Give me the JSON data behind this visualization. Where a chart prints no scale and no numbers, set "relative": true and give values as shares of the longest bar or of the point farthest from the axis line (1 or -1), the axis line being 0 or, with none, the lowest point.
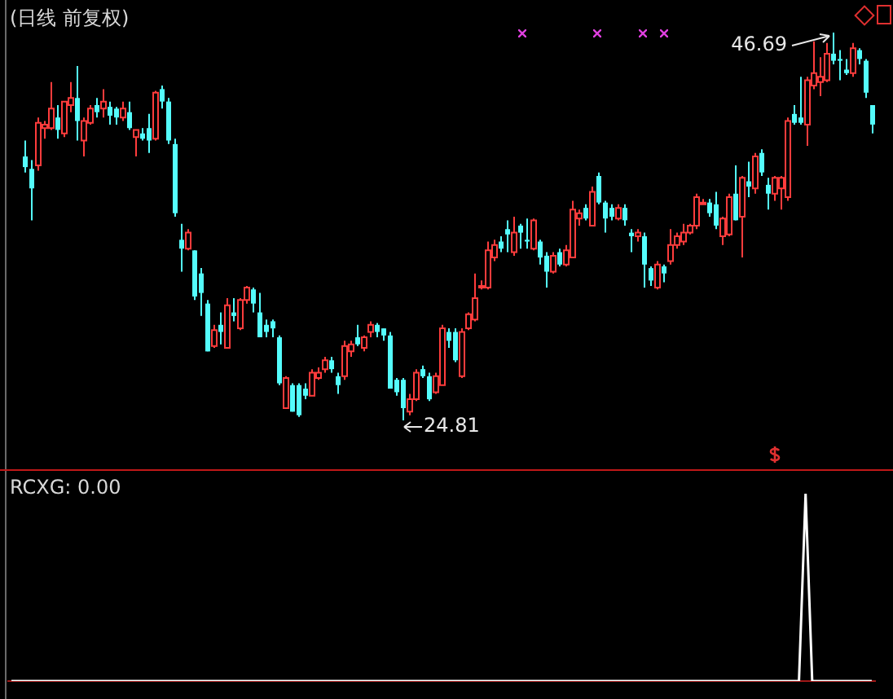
{
  "chart_data": [
    {
      "type": "candlestick",
      "title": "(日线 前复权)",
      "tick_labels": false,
      "categories": [
        null,
        null,
        null,
        null,
        null,
        null,
        null,
        null,
        null,
        null,
        null,
        null,
        null,
        null,
        null,
        null,
        null,
        null,
        null,
        null,
        null,
        null,
        null,
        null,
        null,
        null,
        null,
        null,
        null,
        null,
        null,
        null,
        null,
        null,
        null,
        null,
        null,
        null,
        null,
        null,
        null,
        null,
        null,
        null,
        null,
        null,
        null,
        null,
        null,
        null,
        null,
        null,
        null,
        null,
        null,
        null,
        null,
        null,
        null,
        null,
        null,
        null,
        null,
        null,
        null,
        null,
        null,
        null,
        null,
        null,
        null,
        null,
        null,
        null,
        null,
        null,
        null,
        null,
        null,
        null,
        null,
        null,
        null,
        null,
        null,
        null,
        null,
        null,
        null,
        null,
        null,
        null,
        null,
        null,
        null,
        null,
        null,
        null,
        null,
        null,
        null,
        null,
        null,
        null,
        null,
        null,
        null,
        null,
        null,
        null,
        null,
        null,
        null,
        null,
        null,
        null,
        null,
        null,
        null,
        null,
        null,
        null,
        null,
        null,
        null,
        null,
        null,
        null,
        null,
        null,
        null
      ],
      "ohlc": [
        [
          39.7,
          40.6,
          38.8,
          39.1
        ],
        [
          39.0,
          39.5,
          36.1,
          37.9
        ],
        [
          39.2,
          41.9,
          38.9,
          41.6
        ],
        [
          41.3,
          41.7,
          40.7,
          41.5
        ],
        [
          41.3,
          43.9,
          41.2,
          42.4
        ],
        [
          41.9,
          42.6,
          40.7,
          41.2
        ],
        [
          41.0,
          42.8,
          40.8,
          42.8
        ],
        [
          42.6,
          43.9,
          42.2,
          43.0
        ],
        [
          43.0,
          44.8,
          40.6,
          41.7
        ],
        [
          40.6,
          41.9,
          39.7,
          41.7
        ],
        [
          41.6,
          42.6,
          41.5,
          42.4
        ],
        [
          42.6,
          43.0,
          41.9,
          42.2
        ],
        [
          42.4,
          43.5,
          41.9,
          42.8
        ],
        [
          42.5,
          42.8,
          41.5,
          42.0
        ],
        [
          42.4,
          42.5,
          41.5,
          41.9
        ],
        [
          41.9,
          42.8,
          41.7,
          42.4
        ],
        [
          42.2,
          42.8,
          41.2,
          41.3
        ],
        [
          40.8,
          41.2,
          39.7,
          41.2
        ],
        [
          41.0,
          41.3,
          40.6,
          40.7
        ],
        [
          41.3,
          42.1,
          39.9,
          40.6
        ],
        [
          40.7,
          43.4,
          40.6,
          43.3
        ],
        [
          43.5,
          43.7,
          42.4,
          42.8
        ],
        [
          42.8,
          43.0,
          40.4,
          40.6
        ],
        [
          40.4,
          40.7,
          36.3,
          36.5
        ],
        [
          35.0,
          35.9,
          33.2,
          34.5
        ],
        [
          34.5,
          35.6,
          34.4,
          35.4
        ],
        [
          34.4,
          34.4,
          31.6,
          31.8
        ],
        [
          33.1,
          33.4,
          30.7,
          32.0
        ],
        [
          31.4,
          31.6,
          28.7,
          28.7
        ],
        [
          29.0,
          30.2,
          28.9,
          29.9
        ],
        [
          30.2,
          30.9,
          29.1,
          29.8
        ],
        [
          28.9,
          31.7,
          28.9,
          31.3
        ],
        [
          30.9,
          31.7,
          30.4,
          30.7
        ],
        [
          30.0,
          31.7,
          29.9,
          31.6
        ],
        [
          31.6,
          32.4,
          31.4,
          32.3
        ],
        [
          32.2,
          32.3,
          30.9,
          31.4
        ],
        [
          30.9,
          32.0,
          29.5,
          29.5
        ],
        [
          30.2,
          30.5,
          29.5,
          29.8
        ],
        [
          30.4,
          30.5,
          29.5,
          30.0
        ],
        [
          29.5,
          29.6,
          26.8,
          26.9
        ],
        [
          25.5,
          27.3,
          25.5,
          27.2
        ],
        [
          26.8,
          26.9,
          25.3,
          25.3
        ],
        [
          26.8,
          26.9,
          25.0,
          25.1
        ],
        [
          26.6,
          26.9,
          26.0,
          26.2
        ],
        [
          26.2,
          27.7,
          26.2,
          27.5
        ],
        [
          27.2,
          27.8,
          27.1,
          27.5
        ],
        [
          27.7,
          28.4,
          27.5,
          28.2
        ],
        [
          28.2,
          28.4,
          27.5,
          27.7
        ],
        [
          27.3,
          27.5,
          26.3,
          26.8
        ],
        [
          27.3,
          29.3,
          27.1,
          29.0
        ],
        [
          28.7,
          29.3,
          28.4,
          29.1
        ],
        [
          29.5,
          30.2,
          29.0,
          29.1
        ],
        [
          28.9,
          29.6,
          28.7,
          29.5
        ],
        [
          29.8,
          30.4,
          29.5,
          30.2
        ],
        [
          30.2,
          30.3,
          29.5,
          29.8
        ],
        [
          30.0,
          30.0,
          29.3,
          29.6
        ],
        [
          29.6,
          29.8,
          26.6,
          26.6
        ],
        [
          27.1,
          27.2,
          26.2,
          26.4
        ],
        [
          27.1,
          27.2,
          24.81,
          25.5
        ],
        [
          25.3,
          26.3,
          25.1,
          26.0
        ],
        [
          26.0,
          27.7,
          25.9,
          27.5
        ],
        [
          27.7,
          27.9,
          27.2,
          27.3
        ],
        [
          27.3,
          27.5,
          25.9,
          26.0
        ],
        [
          26.4,
          27.5,
          26.3,
          27.3
        ],
        [
          26.8,
          30.2,
          26.8,
          30.0
        ],
        [
          29.8,
          30.0,
          28.9,
          29.3
        ],
        [
          29.8,
          30.0,
          28.1,
          28.2
        ],
        [
          27.3,
          30.0,
          27.2,
          29.8
        ],
        [
          30.0,
          30.9,
          29.9,
          30.8
        ],
        [
          30.5,
          33.1,
          30.4,
          31.7
        ],
        [
          32.3,
          32.7,
          32.2,
          32.4
        ],
        [
          32.3,
          34.9,
          32.2,
          34.4
        ],
        [
          34.0,
          35.0,
          33.8,
          34.7
        ],
        [
          34.9,
          35.2,
          34.3,
          34.5
        ],
        [
          35.6,
          36.1,
          34.3,
          35.3
        ],
        [
          34.3,
          36.3,
          34.1,
          35.4
        ],
        [
          35.8,
          35.9,
          34.5,
          35.4
        ],
        [
          35.0,
          36.2,
          34.5,
          34.9
        ],
        [
          34.5,
          36.2,
          34.4,
          36.1
        ],
        [
          34.9,
          35.0,
          33.6,
          34.0
        ],
        [
          34.1,
          34.3,
          32.3,
          33.2
        ],
        [
          33.2,
          34.3,
          33.1,
          34.1
        ],
        [
          34.3,
          34.5,
          33.5,
          33.6
        ],
        [
          33.6,
          34.7,
          33.5,
          34.4
        ],
        [
          34.0,
          37.2,
          34.0,
          36.7
        ],
        [
          36.2,
          36.7,
          35.8,
          36.5
        ],
        [
          36.8,
          37.0,
          36.1,
          36.2
        ],
        [
          35.8,
          38.0,
          35.8,
          37.7
        ],
        [
          38.6,
          38.8,
          37.0,
          37.1
        ],
        [
          37.1,
          37.2,
          35.4,
          36.2
        ],
        [
          36.8,
          37.0,
          36.1,
          36.3
        ],
        [
          36.2,
          37.0,
          36.1,
          36.8
        ],
        [
          36.8,
          37.0,
          35.8,
          36.1
        ],
        [
          35.4,
          35.6,
          34.3,
          35.2
        ],
        [
          35.2,
          35.6,
          34.9,
          35.4
        ],
        [
          35.2,
          35.4,
          32.3,
          33.6
        ],
        [
          33.4,
          33.5,
          32.4,
          32.7
        ],
        [
          32.3,
          33.8,
          32.2,
          33.6
        ],
        [
          33.5,
          33.6,
          32.6,
          33.1
        ],
        [
          33.8,
          35.6,
          33.6,
          34.7
        ],
        [
          34.7,
          35.4,
          34.5,
          35.2
        ],
        [
          34.9,
          35.9,
          34.7,
          35.4
        ],
        [
          35.4,
          35.9,
          35.3,
          35.8
        ],
        [
          35.8,
          37.6,
          35.6,
          37.4
        ],
        [
          37.0,
          37.3,
          37.0,
          37.1
        ],
        [
          37.1,
          37.3,
          36.3,
          36.5
        ],
        [
          37.0,
          37.7,
          35.6,
          35.8
        ],
        [
          35.2,
          36.3,
          34.7,
          36.2
        ],
        [
          35.3,
          37.6,
          35.2,
          37.4
        ],
        [
          37.6,
          39.2,
          36.1,
          36.1
        ],
        [
          36.3,
          38.6,
          34.0,
          38.5
        ],
        [
          38.3,
          39.4,
          37.4,
          38.0
        ],
        [
          37.9,
          39.9,
          37.6,
          39.7
        ],
        [
          39.9,
          40.1,
          38.6,
          38.8
        ],
        [
          38.1,
          38.5,
          36.7,
          37.6
        ],
        [
          37.6,
          38.6,
          37.2,
          38.5
        ],
        [
          37.9,
          38.6,
          36.7,
          38.5
        ],
        [
          37.4,
          41.9,
          37.2,
          41.7
        ],
        [
          42.1,
          42.6,
          41.5,
          41.6
        ],
        [
          41.9,
          44.2,
          41.5,
          41.6
        ],
        [
          41.5,
          44.2,
          40.3,
          44.0
        ],
        [
          43.7,
          46.2,
          43.5,
          44.4
        ],
        [
          43.9,
          45.3,
          43.1,
          44.2
        ],
        [
          44.0,
          46.1,
          43.9,
          45.5
        ],
        [
          45.5,
          46.69,
          44.9,
          45.1
        ],
        [
          45.2,
          45.7,
          44.0,
          45.1
        ],
        [
          44.6,
          45.2,
          44.3,
          44.4
        ],
        [
          44.4,
          46.1,
          44.2,
          45.8
        ],
        [
          45.7,
          45.8,
          44.9,
          45.2
        ],
        [
          45.1,
          45.2,
          43.0,
          43.3
        ],
        [
          42.6,
          42.6,
          41.0,
          41.5
        ]
      ],
      "annotations": [
        "46.69",
        "24.81"
      ]
    },
    {
      "type": "line",
      "title": "RCXG: 0.00",
      "color": "#ffffff",
      "relative": true,
      "tick_labels": false,
      "categories": [
        null,
        null,
        null,
        null,
        null,
        null,
        null,
        null,
        null,
        null,
        null,
        null,
        null,
        null,
        null,
        null,
        null,
        null,
        null,
        null,
        null,
        null,
        null,
        null,
        null,
        null,
        null,
        null,
        null,
        null,
        null,
        null,
        null,
        null,
        null,
        null,
        null,
        null,
        null,
        null,
        null,
        null,
        null,
        null,
        null,
        null,
        null,
        null,
        null,
        null,
        null,
        null,
        null,
        null,
        null,
        null,
        null,
        null,
        null,
        null,
        null,
        null,
        null,
        null,
        null,
        null,
        null,
        null,
        null,
        null,
        null,
        null,
        null,
        null,
        null,
        null,
        null,
        null,
        null,
        null,
        null,
        null,
        null,
        null,
        null,
        null,
        null,
        null,
        null,
        null,
        null,
        null,
        null,
        null,
        null,
        null,
        null,
        null,
        null,
        null,
        null,
        null,
        null,
        null,
        null,
        null,
        null,
        null,
        null,
        null,
        null,
        null,
        null,
        null,
        null,
        null,
        null,
        null,
        null,
        null,
        null,
        null,
        null,
        null,
        null,
        null,
        null,
        null,
        null,
        null,
        null
      ],
      "values": [
        0,
        0,
        0,
        0,
        0,
        0,
        0,
        0,
        0,
        0,
        0,
        0,
        0,
        0,
        0,
        0,
        0,
        0,
        0,
        0,
        0,
        0,
        0,
        0,
        0,
        0,
        0,
        0,
        0,
        0,
        0,
        0,
        0,
        0,
        0,
        0,
        0,
        0,
        0,
        0,
        0,
        0,
        0,
        0,
        0,
        0,
        0,
        0,
        0,
        0,
        0,
        0,
        0,
        0,
        0,
        0,
        0,
        0,
        0,
        0,
        0,
        0,
        0,
        0,
        0,
        0,
        0,
        0,
        0,
        0,
        0,
        0,
        0,
        0,
        0,
        0,
        0,
        0,
        0,
        0,
        0,
        0,
        0,
        0,
        0,
        0,
        0,
        0,
        0,
        0,
        0,
        0,
        0,
        0,
        0,
        0,
        0,
        0,
        0,
        0,
        0,
        0,
        0,
        0,
        0,
        0,
        0,
        0,
        0,
        0,
        0,
        0,
        0,
        0,
        0,
        0,
        0,
        0,
        0,
        0,
        1,
        0,
        0,
        0,
        0,
        0,
        0,
        0,
        0,
        0,
        0
      ]
    }
  ]
}
